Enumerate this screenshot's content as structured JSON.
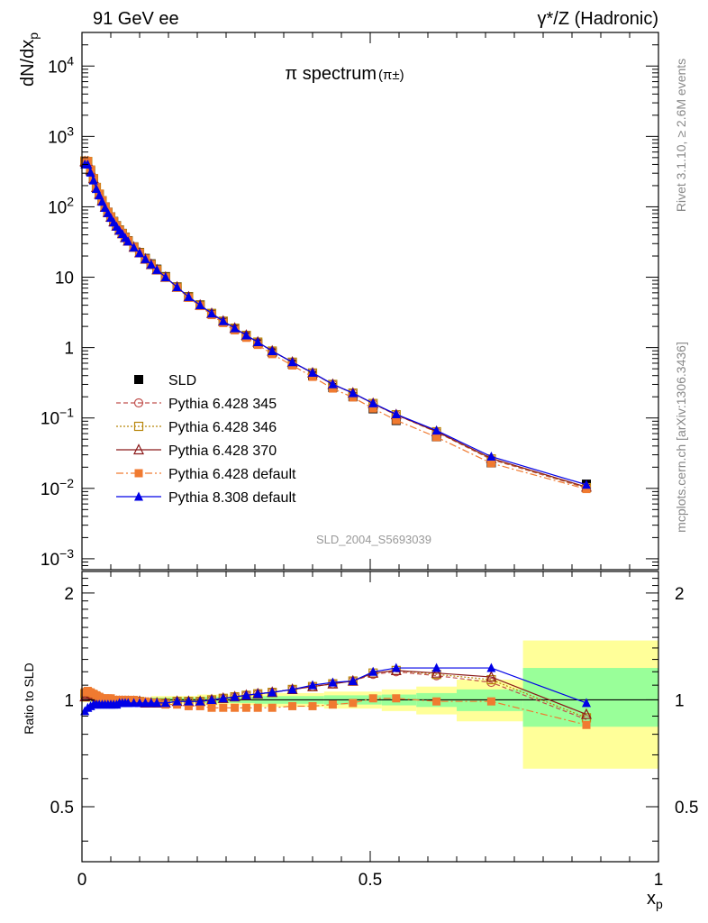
{
  "header": {
    "left_title": "91 GeV ee",
    "right_title": "γ*/Z (Hadronic)"
  },
  "side_text": {
    "rivet": "Rivet 3.1.10, ≥ 2.6M events",
    "mcplots": "mcplots.cern.ch [arXiv:1306.3436]"
  },
  "chart_data": {
    "type": "line",
    "title": "π spectrum",
    "title_suffix": "(π±)",
    "analysis_id": "SLD_2004_S5693039",
    "ylabel": "dN/dx_p",
    "ratio_ylabel": "Ratio to SLD",
    "xlabel": "x_p",
    "xlim": [
      0,
      1
    ],
    "ylim": [
      0.0007,
      30000
    ],
    "yscale": "log",
    "ratio_ylim": [
      0.35,
      2.3
    ],
    "ratio_yscale": "log",
    "grid": false,
    "legend_position": "center-left",
    "x_tick_labels": [
      "0",
      "0.5",
      "1"
    ],
    "y_tick_labels": [
      "10^-3",
      "10^-2",
      "10^-1",
      "1",
      "10",
      "10^2",
      "10^3",
      "10^4"
    ],
    "ratio_tick_labels": [
      "0.5",
      "1",
      "2"
    ],
    "x": [
      0.005,
      0.01,
      0.015,
      0.02,
      0.025,
      0.03,
      0.035,
      0.04,
      0.045,
      0.05,
      0.055,
      0.06,
      0.065,
      0.07,
      0.075,
      0.08,
      0.09,
      0.1,
      0.11,
      0.12,
      0.13,
      0.145,
      0.165,
      0.185,
      0.205,
      0.225,
      0.245,
      0.265,
      0.285,
      0.305,
      0.33,
      0.365,
      0.4,
      0.435,
      0.47,
      0.505,
      0.545,
      0.615,
      0.71,
      0.875
    ],
    "series": [
      {
        "name": "SLD",
        "color": "#000000",
        "marker": "square-filled",
        "values": [
          430,
          420,
          320,
          245,
          185,
          150,
          122,
          100,
          84,
          72,
          62,
          54,
          47,
          42,
          37,
          33,
          27,
          22.5,
          18.5,
          15.5,
          13.0,
          10.2,
          7.3,
          5.3,
          4.05,
          3.05,
          2.35,
          1.85,
          1.45,
          1.15,
          0.85,
          0.58,
          0.4,
          0.27,
          0.2,
          0.135,
          0.092,
          0.054,
          0.023,
          0.0115
        ]
      },
      {
        "name": "Pythia 6.428 345",
        "color": "#c0504d",
        "marker": "circle-open",
        "dash": "5,3",
        "ratio": [
          1.03,
          1.05,
          1.04,
          1.03,
          1.02,
          1.01,
          1.0,
          0.99,
          0.99,
          0.99,
          0.99,
          0.99,
          0.99,
          0.99,
          0.99,
          0.99,
          0.99,
          0.99,
          0.98,
          0.98,
          0.98,
          0.98,
          0.99,
          0.99,
          0.99,
          1.0,
          1.01,
          1.02,
          1.03,
          1.04,
          1.05,
          1.07,
          1.09,
          1.11,
          1.13,
          1.18,
          1.2,
          1.17,
          1.12,
          0.88
        ]
      },
      {
        "name": "Pythia 6.428 346",
        "color": "#b8860b",
        "marker": "square-open",
        "dash": "2,2",
        "ratio": [
          1.04,
          1.05,
          1.04,
          1.03,
          1.02,
          1.01,
          1.0,
          0.99,
          0.99,
          0.99,
          0.99,
          0.99,
          0.99,
          0.99,
          0.99,
          0.99,
          0.99,
          0.99,
          0.98,
          0.98,
          0.98,
          0.98,
          0.99,
          0.99,
          0.99,
          1.0,
          1.01,
          1.02,
          1.03,
          1.04,
          1.05,
          1.07,
          1.09,
          1.11,
          1.13,
          1.19,
          1.21,
          1.18,
          1.14,
          0.89
        ]
      },
      {
        "name": "Pythia 6.428 370",
        "color": "#8b1a1a",
        "marker": "triangle-open",
        "dash": "",
        "ratio": [
          1.02,
          1.04,
          1.04,
          1.03,
          1.02,
          1.01,
          1.0,
          0.99,
          0.99,
          0.99,
          0.99,
          0.99,
          0.99,
          0.99,
          0.99,
          0.99,
          0.99,
          0.99,
          0.98,
          0.98,
          0.98,
          0.98,
          0.99,
          0.99,
          0.99,
          1.0,
          1.01,
          1.02,
          1.03,
          1.04,
          1.05,
          1.07,
          1.09,
          1.11,
          1.13,
          1.19,
          1.21,
          1.19,
          1.16,
          0.91
        ]
      },
      {
        "name": "Pythia 6.428 default",
        "color": "#f07a30",
        "marker": "square-filled",
        "dash": "8,3,2,3",
        "ratio": [
          1.05,
          1.06,
          1.05,
          1.04,
          1.03,
          1.02,
          1.01,
          1.01,
          1.01,
          1.01,
          1.0,
          1.0,
          1.0,
          1.0,
          1.0,
          1.0,
          1.0,
          0.99,
          0.99,
          0.98,
          0.98,
          0.97,
          0.97,
          0.96,
          0.96,
          0.95,
          0.95,
          0.95,
          0.95,
          0.95,
          0.95,
          0.96,
          0.96,
          0.97,
          0.98,
          1.01,
          1.01,
          0.99,
          0.99,
          0.85
        ]
      },
      {
        "name": "Pythia 8.308 default",
        "color": "#0000e6",
        "marker": "triangle-filled",
        "dash": "",
        "ratio": [
          0.93,
          0.95,
          0.96,
          0.97,
          0.97,
          0.97,
          0.97,
          0.97,
          0.97,
          0.97,
          0.97,
          0.97,
          0.98,
          0.98,
          0.98,
          0.98,
          0.98,
          0.98,
          0.98,
          0.98,
          0.98,
          0.98,
          0.99,
          0.99,
          0.99,
          1.0,
          1.01,
          1.02,
          1.03,
          1.04,
          1.05,
          1.07,
          1.1,
          1.12,
          1.13,
          1.2,
          1.23,
          1.23,
          1.23,
          0.98
        ]
      }
    ],
    "uncertainty_bands": {
      "x_edges": [
        0.0,
        0.12,
        0.2,
        0.3,
        0.42,
        0.52,
        0.58,
        0.65,
        0.765,
        1.0
      ],
      "inner_lo": [
        0.99,
        0.985,
        0.98,
        0.975,
        0.97,
        0.965,
        0.955,
        0.93,
        0.84
      ],
      "inner_hi": [
        1.01,
        1.015,
        1.02,
        1.025,
        1.03,
        1.035,
        1.045,
        1.07,
        1.23
      ],
      "outer_lo": [
        0.985,
        0.975,
        0.965,
        0.955,
        0.945,
        0.93,
        0.91,
        0.87,
        0.64
      ],
      "outer_hi": [
        1.015,
        1.025,
        1.035,
        1.045,
        1.055,
        1.07,
        1.09,
        1.14,
        1.47
      ],
      "inner_color": "#99ff99",
      "outer_color": "#ffff99"
    }
  }
}
